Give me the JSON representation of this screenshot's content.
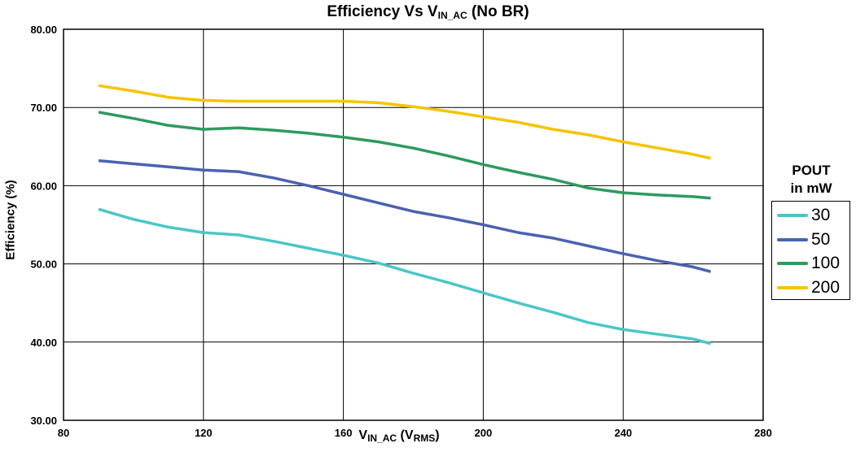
{
  "chart_data": {
    "type": "line",
    "title": {
      "main": "Efficiency Vs V",
      "sub": "IN_AC",
      "tail": " (No BR)"
    },
    "xlabel": {
      "main": "V",
      "sub": "IN_AC",
      "mid": " (V",
      "sub2": "RMS",
      "tail": ")"
    },
    "ylabel": "Efficiency (%)",
    "xlim": [
      80,
      280
    ],
    "ylim": [
      30,
      80
    ],
    "xticks": [
      "80",
      "120",
      "160",
      "200",
      "240",
      "280"
    ],
    "yticks": [
      "30.00",
      "40.00",
      "50.00",
      "60.00",
      "70.00",
      "80.00"
    ],
    "grid": true,
    "legend": {
      "title_line1": "POUT",
      "title_line2": "in mW",
      "placement": "right"
    },
    "x": [
      90,
      100,
      110,
      120,
      130,
      140,
      150,
      160,
      170,
      180,
      190,
      200,
      210,
      220,
      230,
      240,
      250,
      260,
      265
    ],
    "series": [
      {
        "name": "30",
        "color": "#4bc6c6",
        "values": [
          57.0,
          55.7,
          54.7,
          54.0,
          53.7,
          52.9,
          52.0,
          51.1,
          50.1,
          48.8,
          47.6,
          46.3,
          45.0,
          43.8,
          42.5,
          41.6,
          41.0,
          40.4,
          39.8
        ]
      },
      {
        "name": "50",
        "color": "#4a62b0",
        "values": [
          63.2,
          62.8,
          62.4,
          62.0,
          61.8,
          61.0,
          60.0,
          58.9,
          57.8,
          56.7,
          55.9,
          55.0,
          54.0,
          53.3,
          52.3,
          51.3,
          50.4,
          49.6,
          49.0
        ]
      },
      {
        "name": "100",
        "color": "#2e9a5e",
        "values": [
          69.4,
          68.6,
          67.7,
          67.2,
          67.4,
          67.1,
          66.7,
          66.2,
          65.6,
          64.8,
          63.8,
          62.7,
          61.7,
          60.8,
          59.7,
          59.1,
          58.8,
          58.6,
          58.4
        ]
      },
      {
        "name": "200",
        "color": "#f5c400",
        "values": [
          72.8,
          72.1,
          71.3,
          70.9,
          70.8,
          70.8,
          70.8,
          70.8,
          70.6,
          70.1,
          69.5,
          68.8,
          68.1,
          67.2,
          66.5,
          65.6,
          64.8,
          64.0,
          63.5
        ]
      }
    ]
  }
}
